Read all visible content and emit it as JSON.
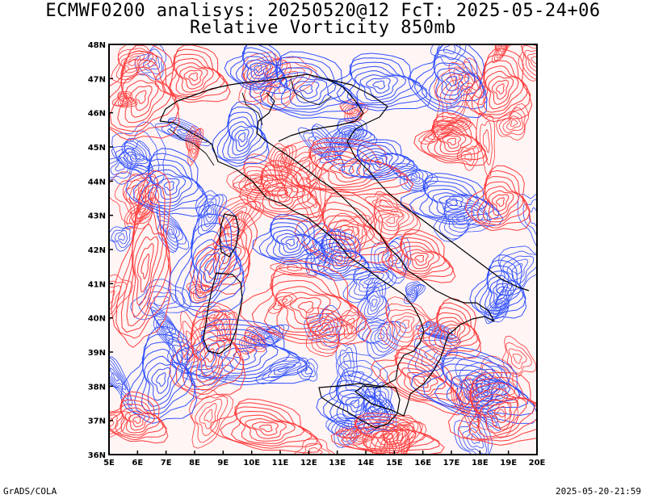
{
  "header": {
    "title_line1": "ECMWF0200 analisys: 20250520@12 FcT: 2025-05-24+06",
    "title_line2": "Relative Vorticity 850mb"
  },
  "footer": {
    "software": "GrADS/COLA",
    "timestamp": "2025-05-20-21:59"
  },
  "map": {
    "lon_labels": [
      "5E",
      "6E",
      "7E",
      "8E",
      "9E",
      "10E",
      "11E",
      "12E",
      "13E",
      "14E",
      "15E",
      "16E",
      "17E",
      "18E",
      "19E",
      "20E"
    ],
    "lat_labels": [
      "48N",
      "47N",
      "46N",
      "45N",
      "44N",
      "43N",
      "42N",
      "41N",
      "40N",
      "39N",
      "38N",
      "37N",
      "36N"
    ],
    "colors": {
      "positive_vorticity": "#ff3b3b",
      "negative_vorticity": "#2f4fff",
      "coastline": "#000000",
      "frame": "#000000"
    }
  }
}
